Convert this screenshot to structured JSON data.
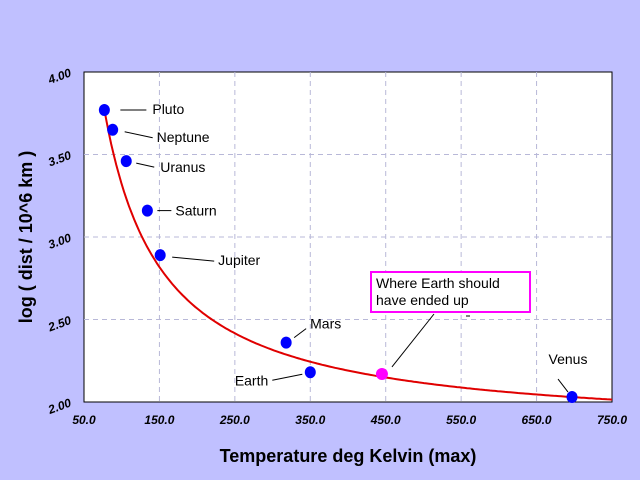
{
  "chart_data": {
    "type": "scatter",
    "xlabel": "Temperature deg Kelvin (max)",
    "ylabel": "log ( dist / 10^6 km )",
    "xlim": [
      50,
      750
    ],
    "ylim": [
      2.0,
      4.0
    ],
    "x_ticks": [
      "50.0",
      "150.0",
      "250.0",
      "350.0",
      "450.0",
      "550.0",
      "650.0",
      "750.0"
    ],
    "y_ticks": [
      "2.00",
      "2.50",
      "3.00",
      "3.50",
      "4.00"
    ],
    "grid": true,
    "points": [
      {
        "name": "Pluto",
        "x": 77,
        "y": 3.77,
        "color": "#0000ff"
      },
      {
        "name": "Neptune",
        "x": 88,
        "y": 3.65,
        "color": "#0000ff"
      },
      {
        "name": "Uranus",
        "x": 106,
        "y": 3.46,
        "color": "#0000ff"
      },
      {
        "name": "Saturn",
        "x": 134,
        "y": 3.16,
        "color": "#0000ff"
      },
      {
        "name": "Jupiter",
        "x": 151,
        "y": 2.89,
        "color": "#0000ff"
      },
      {
        "name": "Mars",
        "x": 318,
        "y": 2.36,
        "color": "#0000ff"
      },
      {
        "name": "Earth",
        "x": 350,
        "y": 2.18,
        "color": "#0000ff"
      },
      {
        "name": "Venus",
        "x": 697,
        "y": 2.03,
        "color": "#0000ff"
      }
    ],
    "highlight": {
      "x": 445,
      "y": 2.17,
      "color": "#ff00ff",
      "text": [
        "Where Earth should",
        "have ended up"
      ]
    },
    "curve": {
      "color": "#e00000",
      "x_from": 76,
      "x_to": 750
    }
  }
}
